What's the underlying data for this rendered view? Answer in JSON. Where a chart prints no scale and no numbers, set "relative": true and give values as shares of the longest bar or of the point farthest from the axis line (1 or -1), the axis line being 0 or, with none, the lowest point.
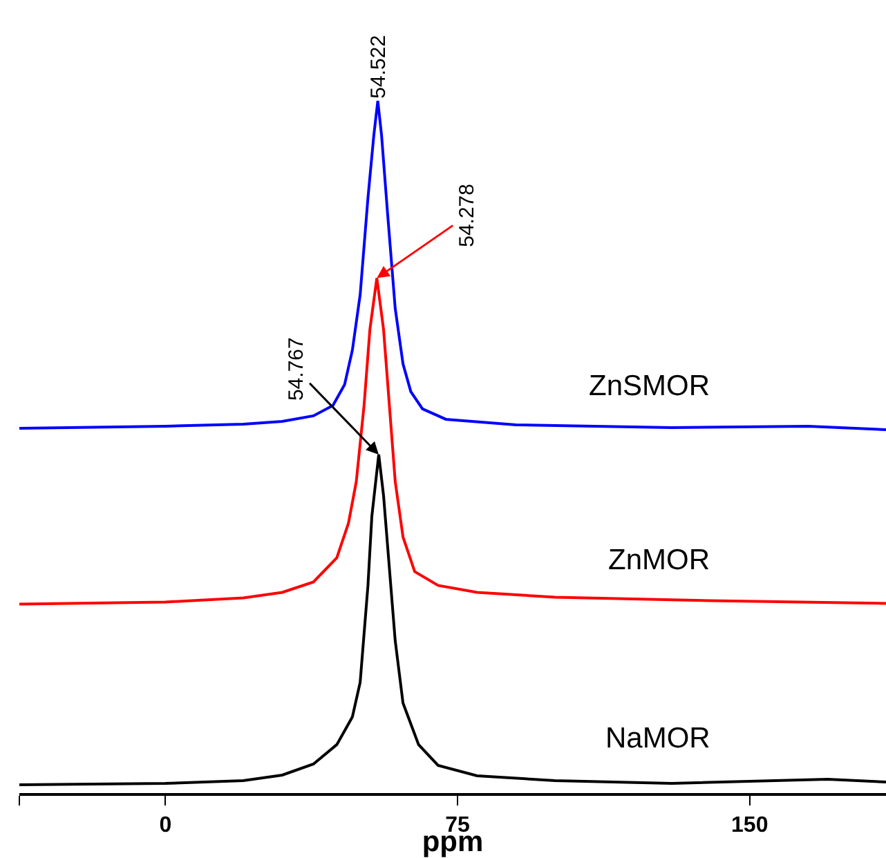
{
  "chart_data": {
    "type": "line",
    "relative": true,
    "xlabel": "ppm",
    "xlim": [
      -37.5,
      185
    ],
    "xticks": [
      {
        "value": -37.5,
        "label": null
      },
      0,
      75,
      150
    ],
    "legend": false,
    "marker": "none",
    "line_style": "solid",
    "series": [
      {
        "name": "ZnSMOR",
        "color": "#0000ff",
        "x": [
          -37.5,
          0,
          20,
          30,
          38,
          43,
          46,
          48,
          50,
          52,
          53.5,
          54.522,
          55.5,
          57,
          59,
          61,
          63,
          66,
          72,
          90,
          130,
          165,
          185
        ],
        "values": [
          0.527,
          0.53,
          0.533,
          0.537,
          0.545,
          0.56,
          0.59,
          0.64,
          0.72,
          0.86,
          0.95,
          1,
          0.95,
          0.84,
          0.7,
          0.62,
          0.58,
          0.555,
          0.54,
          0.532,
          0.528,
          0.53,
          0.525
        ]
      },
      {
        "name": "ZnMOR",
        "color": "#ff0000",
        "x": [
          -37.5,
          0,
          20,
          30,
          38,
          44,
          47,
          49,
          51,
          52.5,
          54.278,
          56,
          57.5,
          59,
          61,
          64,
          70,
          80,
          100,
          140,
          185
        ],
        "values": [
          0.273,
          0.276,
          0.282,
          0.29,
          0.305,
          0.34,
          0.39,
          0.45,
          0.56,
          0.67,
          0.744,
          0.67,
          0.56,
          0.45,
          0.37,
          0.32,
          0.3,
          0.29,
          0.283,
          0.278,
          0.274
        ]
      },
      {
        "name": "NaMOR",
        "color": "#000000",
        "x": [
          -37.5,
          0,
          20,
          30,
          38,
          44,
          48,
          50,
          52,
          53,
          54.767,
          56,
          57,
          59,
          61,
          65,
          70,
          80,
          100,
          130,
          170,
          185
        ],
        "values": [
          0.012,
          0.014,
          0.018,
          0.026,
          0.042,
          0.07,
          0.11,
          0.16,
          0.3,
          0.4,
          0.489,
          0.43,
          0.36,
          0.22,
          0.13,
          0.07,
          0.04,
          0.025,
          0.018,
          0.014,
          0.02,
          0.016
        ]
      }
    ],
    "annotations": [
      {
        "text": "54.522",
        "x": 54.522,
        "y": 1
      },
      {
        "text": "54.278",
        "x": 54.278,
        "y": 0.744
      },
      {
        "text": "54.767",
        "x": 54.767,
        "y": 0.489
      }
    ]
  }
}
